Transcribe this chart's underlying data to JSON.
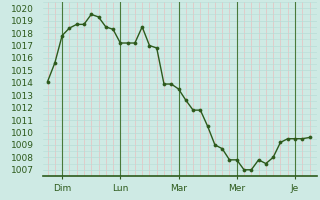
{
  "x_values": [
    0,
    0.5,
    1.0,
    1.5,
    2.0,
    2.5,
    3.0,
    3.5,
    4.0,
    4.5,
    5.0,
    5.5,
    6.0,
    6.5,
    7.0,
    7.5,
    8.0,
    8.5,
    9.0,
    9.5,
    10.0,
    10.5,
    11.0,
    11.5,
    12.0,
    12.5,
    13.0,
    13.5,
    14.0,
    14.5,
    15.0,
    15.5,
    16.0,
    16.5,
    17.0,
    17.5,
    18.0
  ],
  "y_values": [
    1014.1,
    1015.6,
    1017.8,
    1018.4,
    1018.7,
    1018.7,
    1019.5,
    1019.3,
    1018.5,
    1018.3,
    1017.2,
    1017.2,
    1017.2,
    1018.5,
    1017.0,
    1016.8,
    1013.9,
    1013.9,
    1013.5,
    1012.6,
    1011.8,
    1011.8,
    1010.5,
    1009.0,
    1008.7,
    1007.8,
    1007.8,
    1007.0,
    1007.0,
    1007.8,
    1007.5,
    1008.0,
    1009.2,
    1009.5,
    1009.5,
    1009.5,
    1009.6
  ],
  "x_tick_positions": [
    1,
    5,
    9,
    13,
    17
  ],
  "x_tick_labels": [
    "Dim",
    "Lun",
    "Mar",
    "Mer",
    "Je"
  ],
  "x_day_lines": [
    1,
    5,
    9,
    13,
    17
  ],
  "ylim_min": 1006.5,
  "ylim_max": 1020.5,
  "xlim_min": -0.3,
  "xlim_max": 18.5,
  "yticks": [
    1007,
    1008,
    1009,
    1010,
    1011,
    1012,
    1013,
    1014,
    1015,
    1016,
    1017,
    1018,
    1019,
    1020
  ],
  "line_color": "#2d5a1b",
  "marker_color": "#2d5a1b",
  "bg_color": "#ceeae4",
  "grid_color_light": "#b8ddd6",
  "grid_color_pink": "#e8c0c0",
  "day_line_color": "#4a7a3a",
  "axis_color": "#2d5a1b",
  "tick_label_color": "#2d5a1b",
  "font_size": 6.5,
  "line_width": 1.0,
  "marker_size": 2.2
}
